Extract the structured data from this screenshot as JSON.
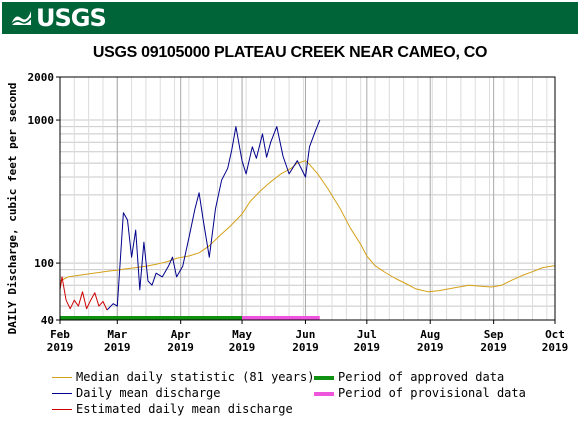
{
  "header": {
    "logo_text": "USGS"
  },
  "chart_data": {
    "type": "line",
    "title": "USGS 09105000 PLATEAU CREEK NEAR CAMEO, CO",
    "ylabel": "DAILY Discharge, cubic feet per second",
    "yscale": "log",
    "ylim": [
      40,
      2000
    ],
    "y_ticks": [
      "2000",
      "1000",
      "100",
      "40"
    ],
    "x_ticks": [
      {
        "month": "Feb",
        "year": "2019",
        "date": "2019-02-01"
      },
      {
        "month": "Mar",
        "year": "2019",
        "date": "2019-03-01"
      },
      {
        "month": "Apr",
        "year": "2019",
        "date": "2019-04-01"
      },
      {
        "month": "May",
        "year": "2019",
        "date": "2019-05-01"
      },
      {
        "month": "Jun",
        "year": "2019",
        "date": "2019-06-01"
      },
      {
        "month": "Jul",
        "year": "2019",
        "date": "2019-07-01"
      },
      {
        "month": "Aug",
        "year": "2019",
        "date": "2019-08-01"
      },
      {
        "month": "Sep",
        "year": "2019",
        "date": "2019-09-01"
      },
      {
        "month": "Oct",
        "year": "2019",
        "date": "2019-10-01"
      }
    ],
    "xlim": [
      "2019-02-01",
      "2019-10-01"
    ],
    "grid": true,
    "legend_position": "bottom",
    "series": [
      {
        "name": "Median daily statistic (81 years)",
        "color": "#d4a017",
        "points": [
          [
            "2019-02-01",
            75
          ],
          [
            "2019-02-05",
            80
          ],
          [
            "2019-02-10",
            82
          ],
          [
            "2019-02-15",
            84
          ],
          [
            "2019-02-20",
            86
          ],
          [
            "2019-02-25",
            88
          ],
          [
            "2019-03-01",
            89
          ],
          [
            "2019-03-05",
            91
          ],
          [
            "2019-03-10",
            93
          ],
          [
            "2019-03-15",
            95
          ],
          [
            "2019-03-20",
            98
          ],
          [
            "2019-03-25",
            102
          ],
          [
            "2019-03-30",
            108
          ],
          [
            "2019-04-05",
            112
          ],
          [
            "2019-04-10",
            118
          ],
          [
            "2019-04-15",
            132
          ],
          [
            "2019-04-20",
            155
          ],
          [
            "2019-04-25",
            180
          ],
          [
            "2019-05-01",
            220
          ],
          [
            "2019-05-05",
            270
          ],
          [
            "2019-05-10",
            320
          ],
          [
            "2019-05-15",
            370
          ],
          [
            "2019-05-20",
            420
          ],
          [
            "2019-05-25",
            460
          ],
          [
            "2019-05-28",
            500
          ],
          [
            "2019-06-01",
            520
          ],
          [
            "2019-06-03",
            490
          ],
          [
            "2019-06-07",
            420
          ],
          [
            "2019-06-12",
            330
          ],
          [
            "2019-06-18",
            240
          ],
          [
            "2019-06-23",
            175
          ],
          [
            "2019-06-28",
            135
          ],
          [
            "2019-07-01",
            112
          ],
          [
            "2019-07-05",
            96
          ],
          [
            "2019-07-10",
            86
          ],
          [
            "2019-07-15",
            78
          ],
          [
            "2019-07-20",
            72
          ],
          [
            "2019-07-25",
            66
          ],
          [
            "2019-07-31",
            63
          ],
          [
            "2019-08-05",
            64
          ],
          [
            "2019-08-10",
            66
          ],
          [
            "2019-08-15",
            68
          ],
          [
            "2019-08-20",
            70
          ],
          [
            "2019-08-25",
            69
          ],
          [
            "2019-08-31",
            68
          ],
          [
            "2019-09-05",
            70
          ],
          [
            "2019-09-10",
            76
          ],
          [
            "2019-09-15",
            82
          ],
          [
            "2019-09-20",
            87
          ],
          [
            "2019-09-25",
            93
          ],
          [
            "2019-10-01",
            96
          ]
        ]
      },
      {
        "name": "Daily mean discharge",
        "color": "#00008b",
        "points": [
          [
            "2019-02-24",
            47
          ],
          [
            "2019-02-27",
            52
          ],
          [
            "2019-03-01",
            50
          ],
          [
            "2019-03-04",
            225
          ],
          [
            "2019-03-06",
            200
          ],
          [
            "2019-03-08",
            110
          ],
          [
            "2019-03-10",
            170
          ],
          [
            "2019-03-12",
            65
          ],
          [
            "2019-03-14",
            140
          ],
          [
            "2019-03-16",
            75
          ],
          [
            "2019-03-18",
            70
          ],
          [
            "2019-03-20",
            85
          ],
          [
            "2019-03-23",
            80
          ],
          [
            "2019-03-26",
            95
          ],
          [
            "2019-03-28",
            110
          ],
          [
            "2019-03-30",
            80
          ],
          [
            "2019-04-02",
            95
          ],
          [
            "2019-04-05",
            150
          ],
          [
            "2019-04-08",
            240
          ],
          [
            "2019-04-10",
            310
          ],
          [
            "2019-04-12",
            200
          ],
          [
            "2019-04-15",
            110
          ],
          [
            "2019-04-18",
            240
          ],
          [
            "2019-04-21",
            380
          ],
          [
            "2019-04-24",
            460
          ],
          [
            "2019-04-26",
            620
          ],
          [
            "2019-04-28",
            900
          ],
          [
            "2019-05-01",
            520
          ],
          [
            "2019-05-03",
            420
          ],
          [
            "2019-05-06",
            650
          ],
          [
            "2019-05-08",
            540
          ],
          [
            "2019-05-11",
            800
          ],
          [
            "2019-05-13",
            550
          ],
          [
            "2019-05-15",
            700
          ],
          [
            "2019-05-18",
            900
          ],
          [
            "2019-05-21",
            560
          ],
          [
            "2019-05-24",
            420
          ],
          [
            "2019-05-28",
            520
          ],
          [
            "2019-06-01",
            400
          ],
          [
            "2019-06-03",
            650
          ],
          [
            "2019-06-06",
            850
          ],
          [
            "2019-06-08",
            1000
          ]
        ]
      },
      {
        "name": "Estimated daily mean discharge",
        "color": "#cc0000",
        "points": [
          [
            "2019-02-01",
            65
          ],
          [
            "2019-02-02",
            80
          ],
          [
            "2019-02-04",
            55
          ],
          [
            "2019-02-06",
            48
          ],
          [
            "2019-02-08",
            55
          ],
          [
            "2019-02-10",
            50
          ],
          [
            "2019-02-12",
            63
          ],
          [
            "2019-02-14",
            48
          ],
          [
            "2019-02-16",
            55
          ],
          [
            "2019-02-18",
            62
          ],
          [
            "2019-02-20",
            50
          ],
          [
            "2019-02-22",
            54
          ],
          [
            "2019-02-24",
            47
          ]
        ]
      }
    ],
    "periods": [
      {
        "name": "Period of approved data",
        "color": "#119111",
        "start": "2019-02-01",
        "end": "2019-05-01"
      },
      {
        "name": "Period of provisional data",
        "color": "#ee55dd",
        "start": "2019-05-01",
        "end": "2019-06-08"
      }
    ]
  }
}
